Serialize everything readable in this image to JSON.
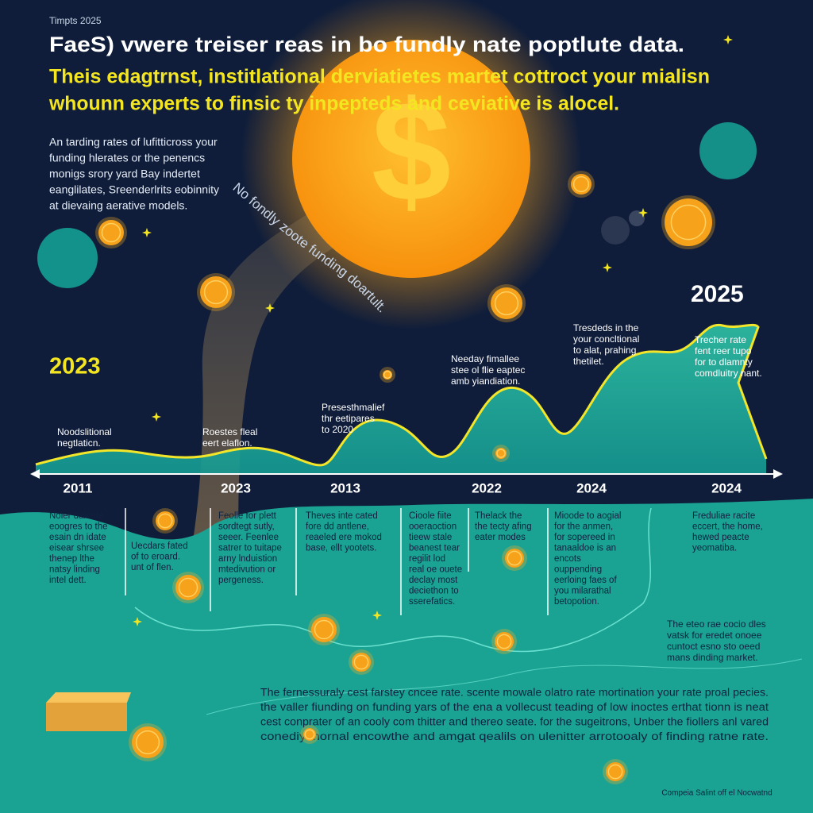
{
  "header": {
    "tag": "Timpts 2025",
    "title": "FaeS) vwere treiser reas in bo fundly nate poptlute data.",
    "subtitle": [
      "Theis edagtrnst, institlational derviatietes martet cottroct your mialisn",
      "whounn experts to finsic ty inpepteds and ceviative is alocel."
    ]
  },
  "sun_symbol": "$",
  "intro": [
    "An tarding rates of lufitticross your",
    "funding hlerates or the penencs",
    "monigs srory yard Bay indertet",
    "eanglilates, Sreenderlrits eobinnity",
    "at dievaing aerative models."
  ],
  "curve_label": "No fondly zoote funding doartult.",
  "year_labels": [
    "2023",
    "2025"
  ],
  "annotations": [
    [
      "Noodslitional",
      "negtlaticn."
    ],
    [
      "Roestes fleal",
      "eert elaflon."
    ],
    [
      "Presesthmalief",
      "thr eetipares",
      "to 2020"
    ],
    [
      "Needay fimallee",
      "stee ol flie eaptec",
      "amb yiandiation."
    ],
    [
      "Tresdeds in the",
      "your concltional",
      "to alat, prahing",
      "thetilet."
    ],
    [
      "Trecher rate",
      "fent reer tupo",
      "for to dlamnty",
      "comdluitry nant."
    ]
  ],
  "timeline": [
    "2011",
    "2023",
    "2013",
    "2022",
    "2024",
    "2024"
  ],
  "columns": [
    [
      "Noier dalente",
      "eoogres to the",
      "esain dn idate",
      "eisear shrsee",
      "thenep lthe",
      "natsy linding",
      "intel dett."
    ],
    [
      "Uecdars fated",
      "of to eroard.",
      "unt of flen."
    ],
    [
      "Feolle for plett",
      "sordtegt sutly,",
      "seeer. Feenlee",
      "satrer to tuitape",
      "arny lnduistion",
      "mtedivution or",
      "pergeness."
    ],
    [
      "Theves inte cated",
      "fore dd antlene,",
      "reaeled ere mokod",
      "base, ellt yootets."
    ],
    [
      "Cioole fiite",
      "ooeraoction",
      "tieew stale",
      "beanest tear",
      "regilit lod",
      "real oe ouete",
      "declay most",
      "deciethon to",
      "sserefatics."
    ],
    [
      "Thelack the",
      "the tecty afing",
      "eater modes"
    ],
    [
      "Mioode to aogial",
      "for the anmen,",
      "for sopereed in",
      "tanaaldoe is an",
      "encots",
      "ouppending",
      "eerloing faes of",
      "you milarathal",
      "betopotion."
    ],
    [
      "Freduliae racite",
      "eccert, the home,",
      "hewed peacte",
      "yeomatiba."
    ]
  ],
  "notes": [
    "The eteo rae cocio dles",
    "vatsk for eredet onoee",
    "cuntoct esno sto oeed",
    "mans dinding market."
  ],
  "bottom": [
    "The fernessuraly cest farstey cncee rate. scente mowale olatro rate mortination your rate proal pecies.",
    "the valler fiunding on funding yars of the ena a vollecust teading of low inoctes erthat tionn is neat",
    "cest conprater of an cooly com thitter and thereo seate. for the sugeitrons, Unber the fiollers anl vared",
    "conediy inornal encowthe and amgat qealils on ulenitter arrotooaly of finding ratne rate."
  ],
  "footer": "Compeia Salint off el Nocwatnd"
}
